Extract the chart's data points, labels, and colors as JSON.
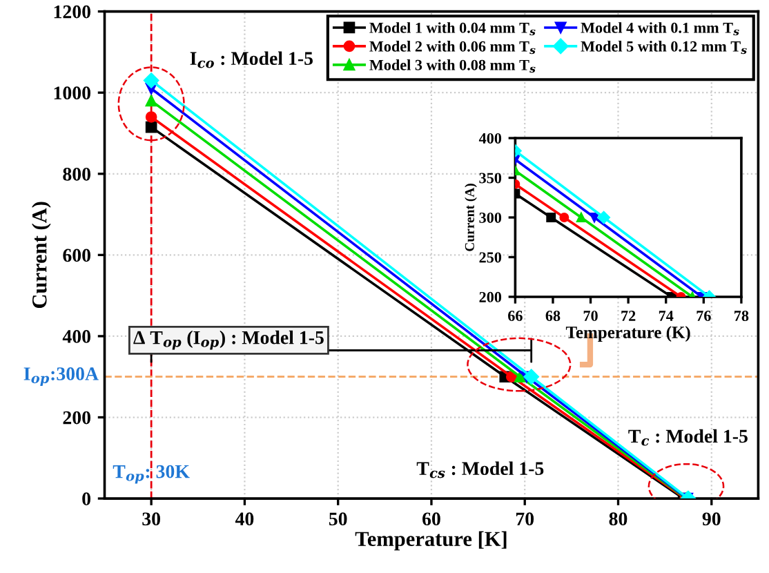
{
  "chart_data": [
    {
      "type": "line",
      "xlabel": "Temperature [K]",
      "ylabel": "Current (A)",
      "xlim": [
        25,
        95
      ],
      "ylim": [
        0,
        1200
      ],
      "xticks": [
        30,
        40,
        50,
        60,
        70,
        80,
        90
      ],
      "yticks": [
        0,
        200,
        400,
        600,
        800,
        1000,
        1200
      ],
      "grid": true,
      "legend": "top right",
      "series": [
        {
          "name": "Model 1 with 0.04 mm T$_{s}$",
          "color": "#000000",
          "marker": "square",
          "x": [
            30,
            67.9,
            87.0
          ],
          "values": [
            915,
            300,
            0
          ]
        },
        {
          "name": "Model 2 with 0.06 mm T$_{s}$",
          "color": "#ff0000",
          "marker": "circle",
          "x": [
            30,
            68.6,
            87.2
          ],
          "values": [
            940,
            300,
            0
          ]
        },
        {
          "name": "Model 3 with 0.08 mm T$_{s}$",
          "color": "#00dd00",
          "marker": "triangle",
          "x": [
            30,
            69.5,
            87.3
          ],
          "values": [
            980,
            300,
            0
          ]
        },
        {
          "name": "Model 4 with 0.1 mm T$_{s}$",
          "color": "#0000ff",
          "marker": "triangle_down",
          "x": [
            30,
            70.2,
            87.4
          ],
          "values": [
            1010,
            300,
            0
          ]
        },
        {
          "name": "Model 5 with 0.12 mm T$_{s}$",
          "color": "#00ffff",
          "marker": "diamond",
          "x": [
            30,
            70.7,
            87.5
          ],
          "values": [
            1030,
            300,
            0
          ]
        }
      ],
      "ref_lines": [
        {
          "axis": "x",
          "value": 30,
          "label": "T$_{op}$: 30K",
          "color": "#e8000b",
          "line_style": "dashed"
        },
        {
          "axis": "y",
          "value": 300,
          "label": "I$_{op}$:300A",
          "color": "#f4a460",
          "line_style": "dashed"
        }
      ],
      "annotations": [
        {
          "text": "I$_{co}$ : Model 1-5",
          "x": 30,
          "y": 1030
        },
        "Δ T$_{op}$ (I$_{op}$) : Model 1-5",
        "T$_{cs}$ : Model 1-5",
        {
          "text": "T$_{c}$ : Model 1-5",
          "x": 87.5,
          "y": 0
        }
      ]
    },
    {
      "type": "line",
      "xlabel": "Temperature (K)",
      "ylabel": "Current (A)",
      "xlim": [
        66,
        78
      ],
      "ylim": [
        200,
        400
      ],
      "xticks": [
        66,
        68,
        70,
        72,
        74,
        76,
        78
      ],
      "yticks": [
        200,
        250,
        300,
        350,
        400
      ],
      "series": [
        {
          "color": "#000000",
          "marker": "square",
          "x": [
            66,
            67.9,
            74.3
          ],
          "values": [
            330,
            300,
            200
          ]
        },
        {
          "color": "#ff0000",
          "marker": "circle",
          "x": [
            66,
            68.6,
            74.8
          ],
          "values": [
            342,
            300,
            200
          ]
        },
        {
          "color": "#00dd00",
          "marker": "triangle",
          "x": [
            66,
            69.5,
            75.4
          ],
          "values": [
            359,
            300,
            200
          ]
        },
        {
          "color": "#0000ff",
          "marker": "triangle_down",
          "x": [
            66,
            70.2,
            75.9
          ],
          "values": [
            373,
            300,
            200
          ]
        },
        {
          "color": "#00ffff",
          "marker": "diamond",
          "x": [
            66,
            70.7,
            76.3
          ],
          "values": [
            384,
            300,
            200
          ]
        }
      ]
    }
  ]
}
